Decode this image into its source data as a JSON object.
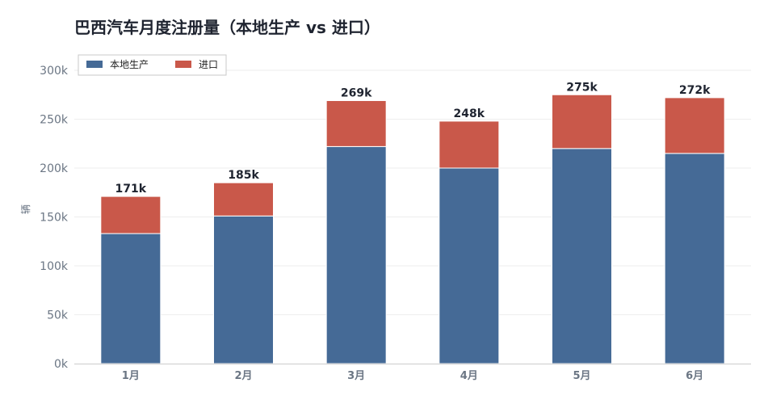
{
  "chart_data": {
    "type": "bar",
    "stacked": true,
    "title": "巴西汽车月度注册量（本地生产 vs 进口）",
    "ylabel": "辆",
    "xlabel": "",
    "categories": [
      "1月",
      "2月",
      "3月",
      "4月",
      "5月",
      "6月"
    ],
    "series": [
      {
        "name": "本地生产",
        "color": "#456a96",
        "values": [
          133000,
          151000,
          222000,
          200000,
          220000,
          215000
        ]
      },
      {
        "name": "进口",
        "color": "#c9584a",
        "values": [
          38000,
          34000,
          47000,
          48000,
          55000,
          57000
        ]
      }
    ],
    "totals": [
      171000,
      185000,
      269000,
      248000,
      275000,
      272000
    ],
    "total_labels": [
      "171k",
      "185k",
      "269k",
      "248k",
      "275k",
      "272k"
    ],
    "ylim": [
      0,
      300000
    ],
    "yticks": [
      0,
      50000,
      100000,
      150000,
      200000,
      250000,
      300000
    ],
    "ytick_labels": [
      "0k",
      "50k",
      "100k",
      "150k",
      "200k",
      "250k",
      "300k"
    ],
    "grid": true,
    "legend_position": "top-left"
  }
}
